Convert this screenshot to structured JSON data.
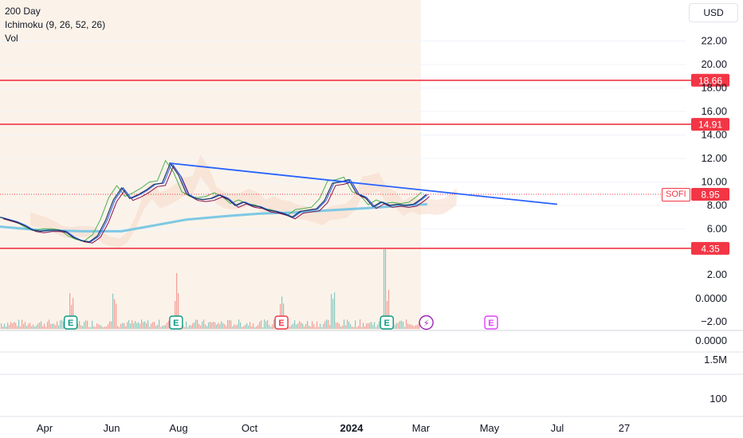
{
  "legend": {
    "ma": "200 Day",
    "ichimoku": "Ichimoku (9, 26, 52, 26)",
    "vol": "Vol"
  },
  "currency": "USD",
  "symbol": "SOFI",
  "last_price": "8.95",
  "colors": {
    "horizontal_level": "#f23645",
    "trendline": "#2962ff",
    "ma200": "#7ec8e3",
    "cloud": "#f5d9c8",
    "price_up": "#26a69a",
    "price_down": "#ef5350",
    "earnings": "#089981",
    "earnings_red": "#f23645",
    "earnings_future": "#e040fb",
    "session_bg": "#fbf3ea"
  },
  "chart_data": {
    "type": "line",
    "symbol": "SOFI",
    "price_axis_ticks": [
      "22.00",
      "20.00",
      "18.00",
      "16.00",
      "14.00",
      "12.00",
      "10.00",
      "8.00",
      "6.00"
    ],
    "indicator_axis_ticks": [
      "2.00",
      "0.0000",
      "−2.00"
    ],
    "lower_axis_ticks": [
      "0.0000",
      "1.5M",
      "100"
    ],
    "x_ticks": [
      "Apr",
      "Jun",
      "Aug",
      "Oct",
      "2024",
      "Mar",
      "May",
      "Jul",
      "27"
    ],
    "horizontal_levels": [
      {
        "label": "18.66",
        "value": 18.66
      },
      {
        "label": "14.91",
        "value": 14.91
      },
      {
        "label": "4.35",
        "value": 4.35
      }
    ],
    "trendline": {
      "from": {
        "x": "Jul 25",
        "y": 11.6
      },
      "to": {
        "x": "Jun 25",
        "y": 8.1
      }
    },
    "price_series": [
      {
        "x": "Mar 1",
        "y": 7.0
      },
      {
        "x": "Mar 8",
        "y": 6.8
      },
      {
        "x": "Mar 15",
        "y": 6.6
      },
      {
        "x": "Mar 22",
        "y": 6.3
      },
      {
        "x": "Mar 29",
        "y": 5.9
      },
      {
        "x": "Apr 5",
        "y": 5.8
      },
      {
        "x": "Apr 12",
        "y": 5.9
      },
      {
        "x": "Apr 19",
        "y": 5.9
      },
      {
        "x": "Apr 26",
        "y": 5.8
      },
      {
        "x": "May 3",
        "y": 5.3
      },
      {
        "x": "May 10",
        "y": 5.0
      },
      {
        "x": "May 17",
        "y": 4.9
      },
      {
        "x": "May 24",
        "y": 5.4
      },
      {
        "x": "May 31",
        "y": 6.7
      },
      {
        "x": "Jun 7",
        "y": 8.5
      },
      {
        "x": "Jun 14",
        "y": 9.5
      },
      {
        "x": "Jun 21",
        "y": 8.6
      },
      {
        "x": "Jun 28",
        "y": 8.9
      },
      {
        "x": "Jul 5",
        "y": 9.3
      },
      {
        "x": "Jul 12",
        "y": 9.8
      },
      {
        "x": "Jul 19",
        "y": 9.9
      },
      {
        "x": "Jul 26",
        "y": 11.6
      },
      {
        "x": "Aug 2",
        "y": 10.6
      },
      {
        "x": "Aug 9",
        "y": 9.0
      },
      {
        "x": "Aug 16",
        "y": 8.6
      },
      {
        "x": "Aug 23",
        "y": 8.5
      },
      {
        "x": "Aug 30",
        "y": 8.6
      },
      {
        "x": "Sep 6",
        "y": 8.9
      },
      {
        "x": "Sep 13",
        "y": 8.6
      },
      {
        "x": "Sep 20",
        "y": 8.0
      },
      {
        "x": "Sep 27",
        "y": 8.3
      },
      {
        "x": "Oct 4",
        "y": 8.0
      },
      {
        "x": "Oct 11",
        "y": 7.9
      },
      {
        "x": "Oct 18",
        "y": 7.6
      },
      {
        "x": "Oct 25",
        "y": 7.5
      },
      {
        "x": "Nov 1",
        "y": 7.3
      },
      {
        "x": "Nov 8",
        "y": 7.0
      },
      {
        "x": "Nov 15",
        "y": 7.5
      },
      {
        "x": "Nov 22",
        "y": 7.6
      },
      {
        "x": "Nov 29",
        "y": 7.7
      },
      {
        "x": "Dec 6",
        "y": 8.4
      },
      {
        "x": "Dec 13",
        "y": 9.9
      },
      {
        "x": "Dec 20",
        "y": 10.0
      },
      {
        "x": "Dec 27",
        "y": 10.2
      },
      {
        "x": "Jan 3",
        "y": 9.0
      },
      {
        "x": "Jan 10",
        "y": 8.7
      },
      {
        "x": "Jan 17",
        "y": 7.9
      },
      {
        "x": "Jan 24",
        "y": 8.3
      },
      {
        "x": "Jan 31",
        "y": 8.0
      },
      {
        "x": "Feb 7",
        "y": 8.1
      },
      {
        "x": "Feb 14",
        "y": 8.0
      },
      {
        "x": "Feb 21",
        "y": 8.1
      },
      {
        "x": "Feb 28",
        "y": 8.6
      },
      {
        "x": "Mar 4",
        "y": 8.95
      }
    ],
    "ma200_series": [
      {
        "x": "Mar 1",
        "y": 6.2
      },
      {
        "x": "Apr 5",
        "y": 5.9
      },
      {
        "x": "May 10",
        "y": 5.8
      },
      {
        "x": "Jun 14",
        "y": 5.8
      },
      {
        "x": "Jul 12",
        "y": 6.3
      },
      {
        "x": "Aug 9",
        "y": 6.8
      },
      {
        "x": "Sep 13",
        "y": 7.1
      },
      {
        "x": "Oct 11",
        "y": 7.3
      },
      {
        "x": "Nov 8",
        "y": 7.4
      },
      {
        "x": "Dec 13",
        "y": 7.6
      },
      {
        "x": "Jan 17",
        "y": 7.8
      },
      {
        "x": "Feb 14",
        "y": 8.0
      },
      {
        "x": "Mar 4",
        "y": 8.1
      }
    ],
    "earnings_events": [
      {
        "label": "E",
        "x": "May 1",
        "status": "positive"
      },
      {
        "label": "E",
        "x": "Jul 31",
        "status": "positive"
      },
      {
        "label": "E",
        "x": "Oct 30",
        "status": "negative"
      },
      {
        "label": "E",
        "x": "Jan 29",
        "status": "positive"
      },
      {
        "label": "E",
        "x": "Apr 29",
        "status": "upcoming"
      }
    ],
    "dividend_split_marker": {
      "label": "⚡",
      "x": "Mar 4"
    },
    "volume_spikes": [
      {
        "x": "May 1"
      },
      {
        "x": "Jun 7"
      },
      {
        "x": "Jul 31"
      },
      {
        "x": "Oct 30"
      },
      {
        "x": "Dec 13"
      },
      {
        "x": "Jan 29"
      }
    ]
  }
}
